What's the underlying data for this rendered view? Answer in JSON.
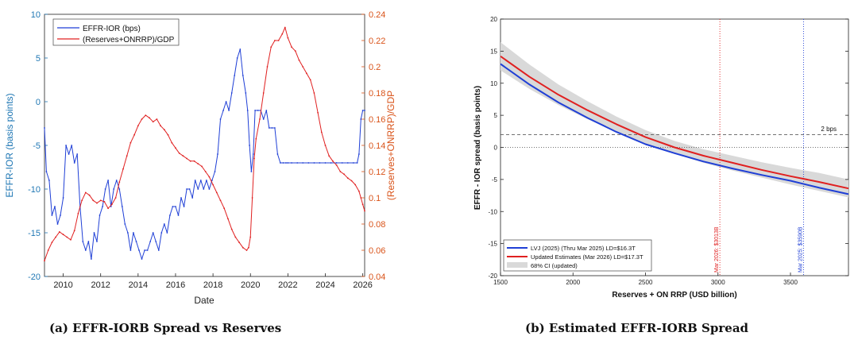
{
  "captions": {
    "a": "(a) EFFR-IORB Spread vs Reserves",
    "b": "(b) Estimated EFFR-IORB Spread"
  },
  "colors": {
    "blue": "#1f3fd6",
    "red": "#e02020",
    "left_axis": "#1f77b4",
    "right_axis": "#d95319",
    "band": "#d9d9d9"
  },
  "chart_data": [
    {
      "type": "line",
      "title": "",
      "xlabel": "Date",
      "ylabel": "EFFR-IOR (basis points)",
      "ylabel_right": "(Reserves+ONRRP)/GDP",
      "xlim": [
        2009,
        2026.1
      ],
      "ylim": [
        -20,
        10
      ],
      "ylim_right": [
        0.04,
        0.24
      ],
      "xticks": [
        2010,
        2012,
        2014,
        2016,
        2018,
        2020,
        2022,
        2024,
        2026
      ],
      "yticks": [
        -20,
        -15,
        -10,
        -5,
        0,
        5,
        10
      ],
      "yticks_right": [
        0.04,
        0.06,
        0.08,
        0.1,
        0.12,
        0.14,
        0.16,
        0.18,
        0.2,
        0.22,
        0.24
      ],
      "legend_position": "top-left",
      "series": [
        {
          "name": "EFFR-IOR (bps)",
          "axis": "left",
          "color": "#1f3fd6",
          "x": [
            2009.0,
            2009.1,
            2009.25,
            2009.4,
            2009.55,
            2009.7,
            2009.85,
            2010.0,
            2010.15,
            2010.3,
            2010.45,
            2010.6,
            2010.75,
            2010.9,
            2011.05,
            2011.2,
            2011.35,
            2011.5,
            2011.65,
            2011.8,
            2011.95,
            2012.1,
            2012.25,
            2012.4,
            2012.55,
            2012.7,
            2012.85,
            2013.0,
            2013.15,
            2013.3,
            2013.45,
            2013.6,
            2013.75,
            2013.9,
            2014.05,
            2014.2,
            2014.35,
            2014.5,
            2014.65,
            2014.8,
            2014.95,
            2015.1,
            2015.25,
            2015.4,
            2015.55,
            2015.7,
            2015.85,
            2016.0,
            2016.15,
            2016.3,
            2016.45,
            2016.6,
            2016.75,
            2016.9,
            2017.05,
            2017.2,
            2017.35,
            2017.5,
            2017.65,
            2017.8,
            2017.95,
            2018.1,
            2018.25,
            2018.4,
            2018.55,
            2018.7,
            2018.85,
            2019.0,
            2019.15,
            2019.3,
            2019.45,
            2019.6,
            2019.75,
            2019.85,
            2019.95,
            2020.05,
            2020.15,
            2020.25,
            2020.4,
            2020.55,
            2020.7,
            2020.85,
            2021.0,
            2021.15,
            2021.3,
            2021.45,
            2021.6,
            2021.75,
            2021.9,
            2022.0,
            2022.2,
            2022.5,
            2022.8,
            2023.1,
            2023.4,
            2023.7,
            2024.0,
            2024.3,
            2024.6,
            2024.9,
            2025.2,
            2025.5,
            2025.7,
            2025.8,
            2025.9,
            2026.0,
            2026.1
          ],
          "values": [
            -3,
            -8,
            -9,
            -13,
            -12,
            -14,
            -13,
            -11,
            -5,
            -6,
            -5,
            -7,
            -6,
            -12,
            -16,
            -17,
            -16,
            -18,
            -15,
            -16,
            -13,
            -12,
            -10,
            -9,
            -12,
            -10,
            -9,
            -10,
            -12,
            -14,
            -15,
            -17,
            -15,
            -16,
            -17,
            -18,
            -17,
            -17,
            -16,
            -15,
            -16,
            -17,
            -15,
            -14,
            -15,
            -13,
            -12,
            -12,
            -13,
            -11,
            -12,
            -10,
            -10,
            -11,
            -9,
            -10,
            -9,
            -10,
            -9,
            -10,
            -9,
            -8,
            -6,
            -2,
            -1,
            0,
            -1,
            1,
            3,
            5,
            6,
            3,
            1,
            -1,
            -5,
            -8,
            -6,
            -1,
            -1,
            -1,
            -2,
            -1,
            -3,
            -3,
            -3,
            -6,
            -7,
            -7,
            -7,
            -7,
            -7,
            -7,
            -7,
            -7,
            -7,
            -7,
            -7,
            -7,
            -7,
            -7,
            -7,
            -7,
            -7,
            -6,
            -2,
            -1,
            -1
          ]
        },
        {
          "name": "(Reserves+ONRRP)/GDP",
          "axis": "right",
          "color": "#e02020",
          "x": [
            2009.0,
            2009.2,
            2009.4,
            2009.6,
            2009.8,
            2010.0,
            2010.2,
            2010.4,
            2010.6,
            2010.8,
            2011.0,
            2011.2,
            2011.4,
            2011.6,
            2011.8,
            2012.0,
            2012.2,
            2012.4,
            2012.6,
            2012.8,
            2013.0,
            2013.2,
            2013.4,
            2013.6,
            2013.8,
            2014.0,
            2014.2,
            2014.4,
            2014.6,
            2014.8,
            2015.0,
            2015.2,
            2015.4,
            2015.6,
            2015.8,
            2016.0,
            2016.2,
            2016.4,
            2016.6,
            2016.8,
            2017.0,
            2017.2,
            2017.4,
            2017.6,
            2017.8,
            2018.0,
            2018.2,
            2018.4,
            2018.6,
            2018.8,
            2019.0,
            2019.2,
            2019.4,
            2019.6,
            2019.8,
            2019.9,
            2020.0,
            2020.1,
            2020.2,
            2020.3,
            2020.5,
            2020.7,
            2020.9,
            2021.1,
            2021.3,
            2021.5,
            2021.7,
            2021.85,
            2022.0,
            2022.2,
            2022.4,
            2022.6,
            2022.8,
            2023.0,
            2023.2,
            2023.4,
            2023.6,
            2023.8,
            2024.0,
            2024.2,
            2024.4,
            2024.6,
            2024.8,
            2025.0,
            2025.2,
            2025.4,
            2025.6,
            2025.8,
            2025.9,
            2026.0,
            2026.1
          ],
          "values": [
            0.052,
            0.06,
            0.066,
            0.07,
            0.074,
            0.072,
            0.07,
            0.068,
            0.075,
            0.088,
            0.098,
            0.104,
            0.102,
            0.098,
            0.096,
            0.098,
            0.097,
            0.092,
            0.095,
            0.1,
            0.112,
            0.122,
            0.132,
            0.142,
            0.148,
            0.155,
            0.16,
            0.163,
            0.161,
            0.158,
            0.16,
            0.155,
            0.152,
            0.148,
            0.142,
            0.138,
            0.134,
            0.132,
            0.13,
            0.128,
            0.128,
            0.126,
            0.124,
            0.12,
            0.116,
            0.11,
            0.104,
            0.098,
            0.092,
            0.084,
            0.076,
            0.07,
            0.066,
            0.062,
            0.06,
            0.062,
            0.07,
            0.1,
            0.13,
            0.145,
            0.16,
            0.18,
            0.2,
            0.215,
            0.22,
            0.22,
            0.225,
            0.23,
            0.222,
            0.215,
            0.212,
            0.205,
            0.2,
            0.195,
            0.19,
            0.18,
            0.165,
            0.15,
            0.14,
            0.132,
            0.128,
            0.125,
            0.12,
            0.118,
            0.115,
            0.113,
            0.11,
            0.105,
            0.1,
            0.095,
            0.09
          ]
        }
      ]
    },
    {
      "type": "line",
      "title": "",
      "xlabel": "Reserves + ON RRP (USD billion)",
      "ylabel": "EFFR - IOR spread (basis points)",
      "xlim": [
        1500,
        3900
      ],
      "ylim": [
        -20,
        20
      ],
      "xticks": [
        1500,
        2000,
        2500,
        3000,
        3500
      ],
      "yticks": [
        -20,
        -15,
        -10,
        -5,
        0,
        5,
        10,
        15,
        20
      ],
      "legend_position": "bottom-left",
      "hline_dashed": {
        "y": 2,
        "label": "2 bps"
      },
      "hline_dotted": {
        "y": 0
      },
      "vlines": [
        {
          "x": 3013,
          "label": "Mar 2026: $3013B",
          "color": "#e02020"
        },
        {
          "x": 3590,
          "label": "Mar 2025: $3590B",
          "color": "#1f3fd6"
        }
      ],
      "x": [
        1500,
        1700,
        1900,
        2100,
        2300,
        2500,
        2700,
        2900,
        3100,
        3300,
        3500,
        3700,
        3900
      ],
      "series": [
        {
          "name": "LVJ (2025) (Thru Mar 2025)  LD=$16.3T",
          "color": "#1f3fd6",
          "values": [
            13.0,
            9.8,
            7.0,
            4.6,
            2.4,
            0.5,
            -0.9,
            -2.2,
            -3.3,
            -4.3,
            -5.2,
            -6.3,
            -7.3
          ]
        },
        {
          "name": "Updated Estimates (Mar 2026)  LD=$17.3T",
          "color": "#e02020",
          "values": [
            14.2,
            11.0,
            8.2,
            5.8,
            3.6,
            1.6,
            0.0,
            -1.3,
            -2.4,
            -3.5,
            -4.5,
            -5.4,
            -6.4
          ]
        },
        {
          "name": "68% CI (updated)",
          "color": "#d9d9d9",
          "lower": [
            12.0,
            9.1,
            6.6,
            4.4,
            2.4,
            0.5,
            -1.0,
            -2.4,
            -3.6,
            -4.7,
            -5.8,
            -6.8,
            -7.8
          ],
          "upper": [
            16.4,
            12.9,
            9.8,
            7.2,
            4.8,
            2.7,
            1.0,
            -0.3,
            -1.3,
            -2.3,
            -3.2,
            -4.0,
            -5.0
          ]
        }
      ]
    }
  ]
}
